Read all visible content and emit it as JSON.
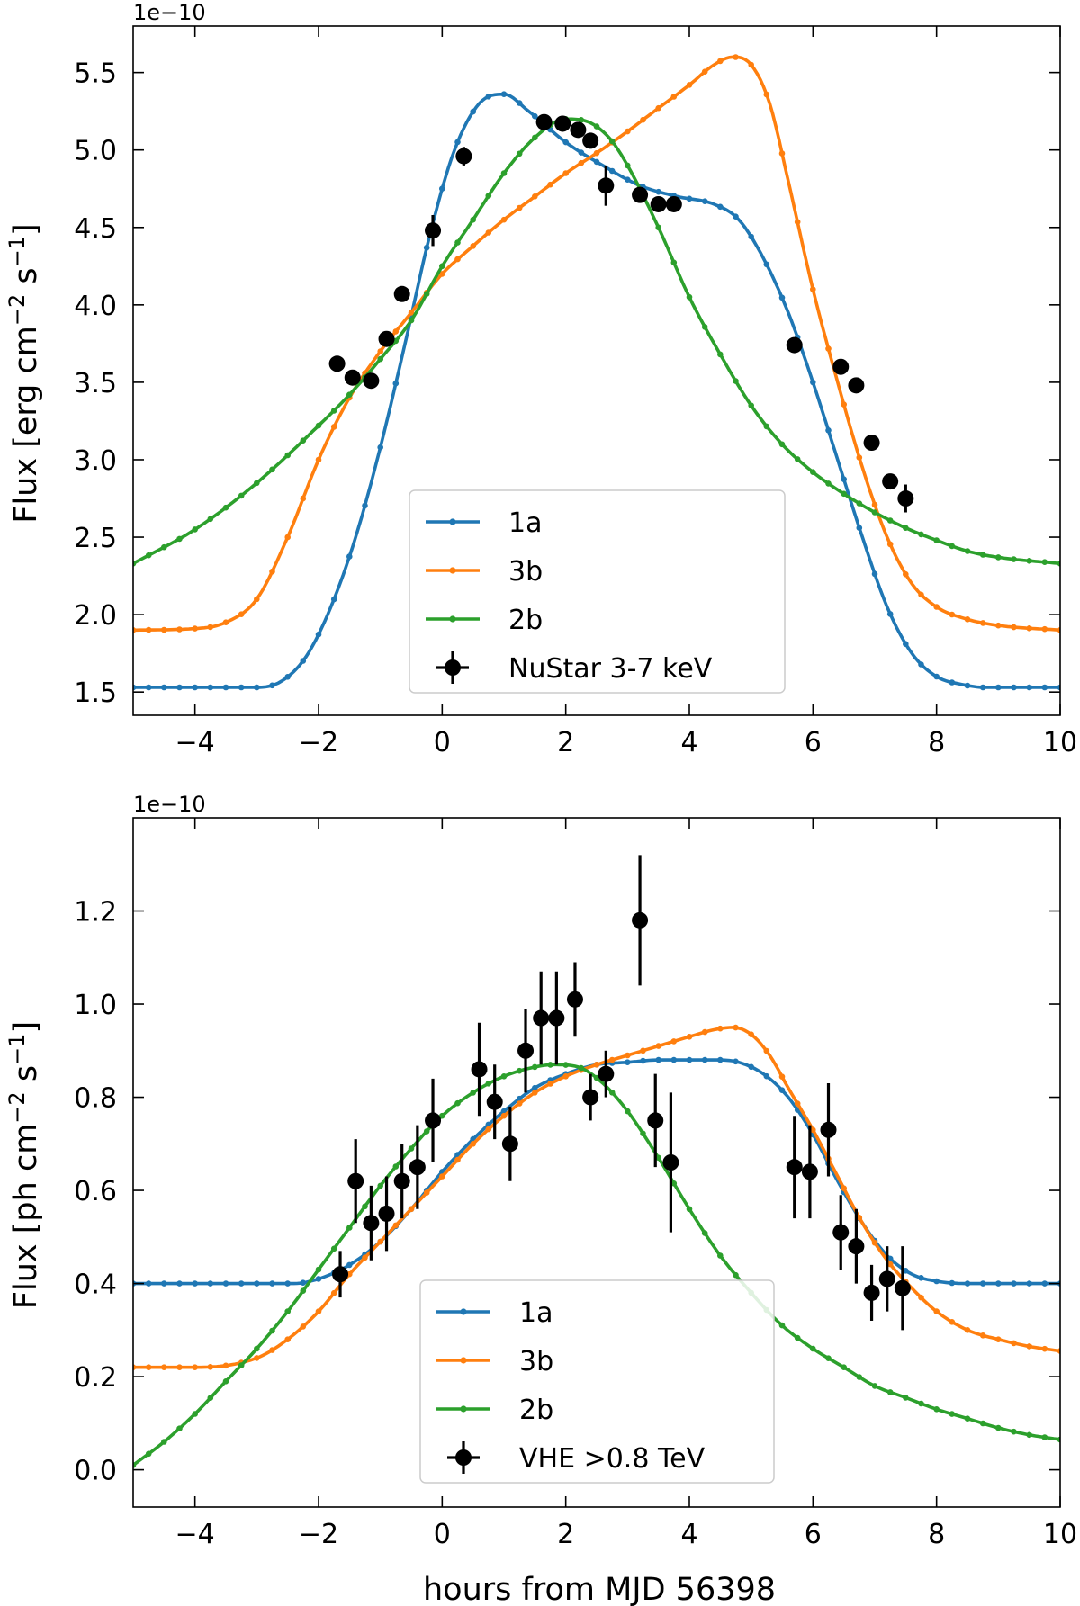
{
  "figure": {
    "xlabel": "hours from MJD 56398"
  },
  "chart_data": [
    {
      "type": "line",
      "panel": "top",
      "ylabel": "Flux [erg cm$^{-2}$ s$^{-1}$]",
      "offset_text": "1e−10",
      "xlim": [
        -5,
        10
      ],
      "ylim": [
        1.35,
        5.8
      ],
      "xticks": [
        -4,
        -2,
        0,
        2,
        4,
        6,
        8,
        10
      ],
      "xtick_labels": [
        "−4",
        "−2",
        "0",
        "2",
        "4",
        "6",
        "8",
        "10"
      ],
      "yticks": [
        1.5,
        2.0,
        2.5,
        3.0,
        3.5,
        4.0,
        4.5,
        5.0,
        5.5
      ],
      "ytick_labels": [
        "1.5",
        "2.0",
        "2.5",
        "3.0",
        "3.5",
        "4.0",
        "4.5",
        "5.0",
        "5.5"
      ],
      "legend": {
        "position": "lower-center",
        "entries": [
          "1a",
          "3b",
          "2b",
          "NuStar 3-7 keV"
        ]
      },
      "series": [
        {
          "name": "1a",
          "color": "#1f77b4",
          "x": [
            -5,
            -3,
            -2.6,
            -2.2,
            -1.8,
            -1.4,
            -1.0,
            -0.6,
            -0.2,
            0.2,
            0.6,
            1.0,
            1.4,
            2.0,
            2.6,
            3.2,
            3.8,
            4.4,
            4.8,
            5.2,
            5.6,
            6.0,
            6.4,
            6.8,
            7.2,
            7.6,
            8.0,
            8.4,
            8.8,
            10
          ],
          "y": [
            1.53,
            1.53,
            1.57,
            1.73,
            2.05,
            2.5,
            3.08,
            3.75,
            4.45,
            5.0,
            5.3,
            5.36,
            5.25,
            5.05,
            4.9,
            4.77,
            4.7,
            4.65,
            4.55,
            4.3,
            3.95,
            3.5,
            3.0,
            2.5,
            2.05,
            1.75,
            1.6,
            1.55,
            1.53,
            1.53
          ]
        },
        {
          "name": "3b",
          "color": "#ff7f0e",
          "x": [
            -5,
            -4,
            -3.5,
            -3,
            -2.5,
            -2,
            -1.5,
            -1,
            -0.5,
            0,
            0.5,
            1,
            1.5,
            2,
            2.5,
            3,
            3.5,
            4,
            4.4,
            4.7,
            5.0,
            5.3,
            5.6,
            6.0,
            6.4,
            6.8,
            7.2,
            7.6,
            8.0,
            8.5,
            9.0,
            10
          ],
          "y": [
            1.9,
            1.91,
            1.95,
            2.1,
            2.5,
            3.0,
            3.4,
            3.7,
            3.95,
            4.2,
            4.38,
            4.55,
            4.7,
            4.85,
            4.98,
            5.12,
            5.27,
            5.42,
            5.55,
            5.6,
            5.55,
            5.3,
            4.8,
            4.1,
            3.5,
            2.95,
            2.5,
            2.2,
            2.05,
            1.97,
            1.93,
            1.9
          ]
        },
        {
          "name": "2b",
          "color": "#2ca02c",
          "x": [
            -5,
            -4,
            -3,
            -2,
            -1.5,
            -1,
            -0.5,
            0,
            0.5,
            1,
            1.5,
            2,
            2.3,
            2.7,
            3.0,
            3.5,
            4.0,
            4.5,
            5.0,
            5.5,
            6.0,
            6.5,
            7.0,
            7.5,
            8.0,
            8.5,
            9.0,
            10
          ],
          "y": [
            2.33,
            2.55,
            2.85,
            3.22,
            3.42,
            3.65,
            3.9,
            4.25,
            4.55,
            4.85,
            5.08,
            5.2,
            5.19,
            5.08,
            4.9,
            4.5,
            4.05,
            3.68,
            3.35,
            3.1,
            2.92,
            2.78,
            2.66,
            2.56,
            2.48,
            2.41,
            2.37,
            2.33
          ]
        }
      ],
      "points": {
        "name": "NuStar 3-7 keV",
        "color": "#000000",
        "x": [
          -1.7,
          -1.45,
          -1.15,
          -0.9,
          -0.65,
          -0.15,
          0.35,
          1.65,
          1.95,
          2.2,
          2.4,
          2.65,
          3.2,
          3.5,
          3.75,
          5.7,
          6.45,
          6.7,
          6.95,
          7.25,
          7.5
        ],
        "y": [
          3.62,
          3.53,
          3.51,
          3.78,
          4.07,
          4.48,
          4.96,
          5.18,
          5.17,
          5.13,
          5.06,
          4.77,
          4.71,
          4.65,
          4.65,
          3.74,
          3.6,
          3.48,
          3.11,
          2.86,
          2.75
        ],
        "yerr": [
          0.04,
          0.04,
          0.04,
          0.04,
          0.05,
          0.1,
          0.06,
          0.04,
          0.04,
          0.04,
          0.04,
          0.13,
          0.04,
          0.04,
          0.04,
          0.04,
          0.04,
          0.04,
          0.04,
          0.04,
          0.09
        ]
      }
    },
    {
      "type": "line",
      "panel": "bottom",
      "ylabel": "Flux [ph cm$^{-2}$ s$^{-1}$]",
      "offset_text": "1e−10",
      "xlim": [
        -5,
        10
      ],
      "ylim": [
        -0.08,
        1.4
      ],
      "xticks": [
        -4,
        -2,
        0,
        2,
        4,
        6,
        8,
        10
      ],
      "xtick_labels": [
        "−4",
        "−2",
        "0",
        "2",
        "4",
        "6",
        "8",
        "10"
      ],
      "yticks": [
        0.0,
        0.2,
        0.4,
        0.6,
        0.8,
        1.0,
        1.2
      ],
      "ytick_labels": [
        "0.0",
        "0.2",
        "0.4",
        "0.6",
        "0.8",
        "1.0",
        "1.2"
      ],
      "legend": {
        "position": "lower-center",
        "entries": [
          "1a",
          "3b",
          "2b",
          "VHE >0.8 TeV"
        ]
      },
      "series": [
        {
          "name": "1a",
          "color": "#1f77b4",
          "x": [
            -5,
            -3,
            -2.4,
            -2,
            -1.5,
            -1,
            -0.5,
            0,
            0.5,
            1,
            1.5,
            2,
            2.5,
            3,
            3.5,
            4,
            4.5,
            4.8,
            5.2,
            5.6,
            6.0,
            6.4,
            6.8,
            7.2,
            7.6,
            8.0,
            8.5,
            10
          ],
          "y": [
            0.4,
            0.4,
            0.4,
            0.41,
            0.44,
            0.49,
            0.56,
            0.64,
            0.71,
            0.77,
            0.82,
            0.85,
            0.87,
            0.875,
            0.88,
            0.88,
            0.88,
            0.875,
            0.85,
            0.8,
            0.72,
            0.62,
            0.53,
            0.46,
            0.42,
            0.405,
            0.4,
            0.4
          ]
        },
        {
          "name": "3b",
          "color": "#ff7f0e",
          "x": [
            -5,
            -4,
            -3,
            -2.5,
            -2,
            -1.5,
            -1,
            -0.5,
            0,
            0.5,
            1,
            1.5,
            2,
            2.5,
            3,
            3.5,
            4,
            4.4,
            4.7,
            5.0,
            5.3,
            5.6,
            6.0,
            6.4,
            6.8,
            7.2,
            7.6,
            8.0,
            8.5,
            9.0,
            9.5,
            10
          ],
          "y": [
            0.22,
            0.22,
            0.24,
            0.28,
            0.34,
            0.42,
            0.49,
            0.56,
            0.63,
            0.7,
            0.76,
            0.81,
            0.845,
            0.87,
            0.89,
            0.91,
            0.93,
            0.945,
            0.95,
            0.935,
            0.89,
            0.82,
            0.73,
            0.63,
            0.53,
            0.45,
            0.39,
            0.34,
            0.3,
            0.28,
            0.265,
            0.255
          ]
        },
        {
          "name": "2b",
          "color": "#2ca02c",
          "x": [
            -5,
            -4.5,
            -4,
            -3.5,
            -3,
            -2.5,
            -2,
            -1.5,
            -1,
            -0.5,
            0,
            0.5,
            1,
            1.5,
            1.8,
            2.2,
            2.6,
            3.0,
            3.5,
            4.0,
            4.5,
            5.0,
            5.5,
            6.0,
            6.5,
            7.0,
            7.5,
            8.0,
            8.5,
            9.0,
            9.5,
            10
          ],
          "y": [
            0.01,
            0.06,
            0.12,
            0.19,
            0.26,
            0.34,
            0.43,
            0.52,
            0.61,
            0.69,
            0.76,
            0.81,
            0.845,
            0.865,
            0.87,
            0.865,
            0.83,
            0.77,
            0.67,
            0.56,
            0.46,
            0.38,
            0.31,
            0.26,
            0.22,
            0.18,
            0.155,
            0.13,
            0.11,
            0.09,
            0.075,
            0.065
          ]
        }
      ],
      "points": {
        "name": "VHE >0.8 TeV",
        "color": "#000000",
        "x": [
          -1.65,
          -1.4,
          -1.15,
          -0.9,
          -0.65,
          -0.4,
          -0.15,
          0.6,
          0.85,
          1.1,
          1.35,
          1.6,
          1.85,
          2.15,
          2.4,
          2.65,
          3.2,
          3.45,
          3.7,
          5.7,
          5.95,
          6.25,
          6.45,
          6.7,
          6.95,
          7.2,
          7.45
        ],
        "y": [
          0.42,
          0.62,
          0.53,
          0.55,
          0.62,
          0.65,
          0.75,
          0.86,
          0.79,
          0.7,
          0.9,
          0.97,
          0.97,
          1.01,
          0.8,
          0.85,
          1.18,
          0.75,
          0.66,
          0.65,
          0.64,
          0.73,
          0.51,
          0.48,
          0.38,
          0.41,
          0.39
        ]
      }
    }
  ]
}
